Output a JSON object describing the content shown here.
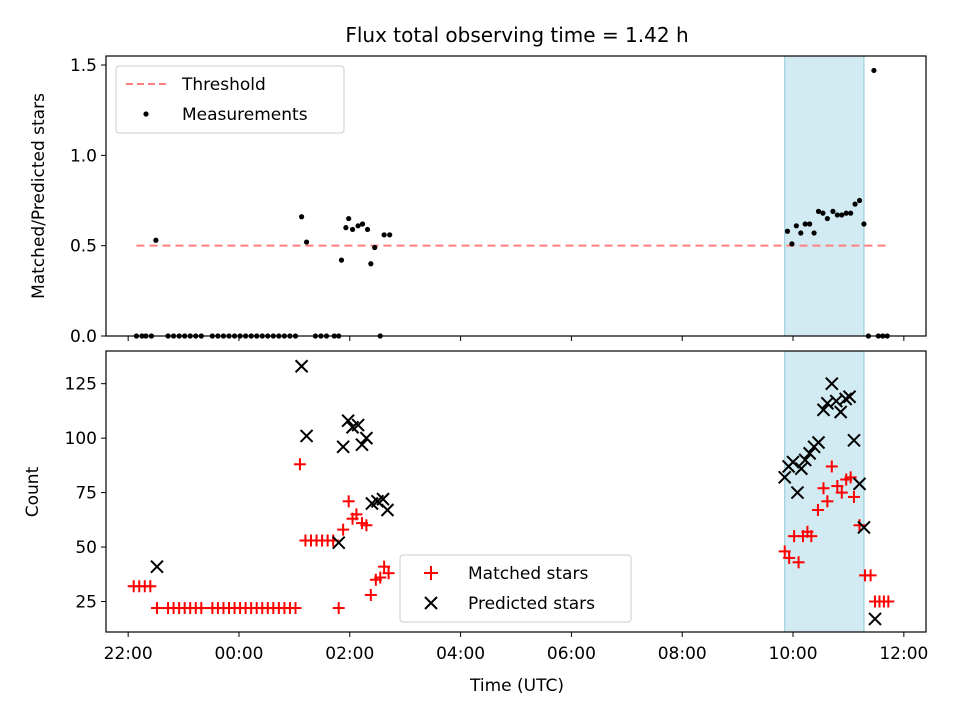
{
  "chart_data": {
    "title": "Flux total observing time = 1.42 h",
    "xlabel": "Time (UTC)",
    "x_unit": "hours UTC (24 = 00:00 next day)",
    "xlim": [
      21.6,
      36.4
    ],
    "xticks": [
      22,
      24,
      26,
      28,
      30,
      32,
      34,
      36
    ],
    "xtick_labels": [
      "22:00",
      "00:00",
      "02:00",
      "04:00",
      "06:00",
      "08:00",
      "10:00",
      "12:00"
    ],
    "highlight_span": [
      33.85,
      35.28
    ],
    "highlight_color": "#add8e6",
    "panels": [
      {
        "type": "scatter",
        "ylabel": "Matched/Predicted stars",
        "ylim": [
          0,
          1.55
        ],
        "yticks": [
          0.0,
          0.5,
          1.0,
          1.5
        ],
        "ytick_labels": [
          "0.0",
          "0.5",
          "1.0",
          "1.5"
        ],
        "legend_position": "top-left",
        "threshold": {
          "name": "Threshold",
          "value": 0.5,
          "x": [
            22.15,
            35.72
          ],
          "color": "#ff7f7f",
          "style": "dashed"
        },
        "series": [
          {
            "name": "Measurements",
            "marker": "dot",
            "color": "#000000",
            "points": [
              [
                22.15,
                0
              ],
              [
                22.25,
                0
              ],
              [
                22.32,
                0
              ],
              [
                22.42,
                0
              ],
              [
                22.5,
                0.53
              ],
              [
                22.72,
                0
              ],
              [
                22.82,
                0
              ],
              [
                22.92,
                0
              ],
              [
                23.02,
                0
              ],
              [
                23.12,
                0
              ],
              [
                23.22,
                0
              ],
              [
                23.32,
                0
              ],
              [
                23.52,
                0
              ],
              [
                23.62,
                0
              ],
              [
                23.72,
                0
              ],
              [
                23.82,
                0
              ],
              [
                23.92,
                0
              ],
              [
                24.02,
                0
              ],
              [
                24.12,
                0
              ],
              [
                24.22,
                0
              ],
              [
                24.32,
                0
              ],
              [
                24.42,
                0
              ],
              [
                24.52,
                0
              ],
              [
                24.62,
                0
              ],
              [
                24.72,
                0
              ],
              [
                24.82,
                0
              ],
              [
                24.92,
                0
              ],
              [
                25.02,
                0
              ],
              [
                25.13,
                0.66
              ],
              [
                25.22,
                0.52
              ],
              [
                25.38,
                0
              ],
              [
                25.48,
                0
              ],
              [
                25.58,
                0
              ],
              [
                25.72,
                0
              ],
              [
                25.8,
                0
              ],
              [
                25.85,
                0.42
              ],
              [
                25.93,
                0.6
              ],
              [
                25.98,
                0.65
              ],
              [
                26.05,
                0.59
              ],
              [
                26.15,
                0.61
              ],
              [
                26.23,
                0.62
              ],
              [
                26.32,
                0.59
              ],
              [
                26.38,
                0.4
              ],
              [
                26.45,
                0.49
              ],
              [
                26.55,
                0
              ],
              [
                26.62,
                0.56
              ],
              [
                26.72,
                0.56
              ],
              [
                33.9,
                0.58
              ],
              [
                33.98,
                0.51
              ],
              [
                34.06,
                0.61
              ],
              [
                34.14,
                0.57
              ],
              [
                34.22,
                0.62
              ],
              [
                34.3,
                0.62
              ],
              [
                34.38,
                0.57
              ],
              [
                34.46,
                0.69
              ],
              [
                34.54,
                0.68
              ],
              [
                34.62,
                0.65
              ],
              [
                34.72,
                0.69
              ],
              [
                34.8,
                0.67
              ],
              [
                34.88,
                0.67
              ],
              [
                34.96,
                0.68
              ],
              [
                35.04,
                0.68
              ],
              [
                35.12,
                0.73
              ],
              [
                35.2,
                0.75
              ],
              [
                35.28,
                0.62
              ],
              [
                35.36,
                0
              ],
              [
                35.46,
                1.47
              ],
              [
                35.54,
                0
              ],
              [
                35.62,
                0
              ],
              [
                35.7,
                0
              ]
            ]
          }
        ]
      },
      {
        "type": "scatter",
        "ylabel": "Count",
        "ylim": [
          11,
          140
        ],
        "yticks": [
          25,
          50,
          75,
          100,
          125
        ],
        "ytick_labels": [
          "25",
          "50",
          "75",
          "100",
          "125"
        ],
        "legend_position": "bottom-center",
        "series": [
          {
            "name": "Matched stars",
            "marker": "plus",
            "color": "#ff0000",
            "points": [
              [
                22.1,
                32
              ],
              [
                22.2,
                32
              ],
              [
                22.3,
                32
              ],
              [
                22.4,
                32
              ],
              [
                22.52,
                22
              ],
              [
                22.72,
                22
              ],
              [
                22.82,
                22
              ],
              [
                22.92,
                22
              ],
              [
                23.02,
                22
              ],
              [
                23.12,
                22
              ],
              [
                23.22,
                22
              ],
              [
                23.32,
                22
              ],
              [
                23.52,
                22
              ],
              [
                23.62,
                22
              ],
              [
                23.72,
                22
              ],
              [
                23.82,
                22
              ],
              [
                23.92,
                22
              ],
              [
                24.02,
                22
              ],
              [
                24.12,
                22
              ],
              [
                24.22,
                22
              ],
              [
                24.32,
                22
              ],
              [
                24.42,
                22
              ],
              [
                24.52,
                22
              ],
              [
                24.62,
                22
              ],
              [
                24.72,
                22
              ],
              [
                24.82,
                22
              ],
              [
                24.92,
                22
              ],
              [
                25.02,
                22
              ],
              [
                25.1,
                88
              ],
              [
                25.2,
                53
              ],
              [
                25.3,
                53
              ],
              [
                25.4,
                53
              ],
              [
                25.5,
                53
              ],
              [
                25.6,
                53
              ],
              [
                25.7,
                53
              ],
              [
                25.8,
                22
              ],
              [
                25.88,
                58
              ],
              [
                25.98,
                71
              ],
              [
                26.05,
                63
              ],
              [
                26.12,
                65
              ],
              [
                26.22,
                61
              ],
              [
                26.3,
                60
              ],
              [
                26.38,
                28
              ],
              [
                26.47,
                35
              ],
              [
                26.55,
                36
              ],
              [
                26.62,
                41
              ],
              [
                26.7,
                38
              ],
              [
                33.85,
                48
              ],
              [
                33.93,
                45
              ],
              [
                34.02,
                55
              ],
              [
                34.1,
                43
              ],
              [
                34.18,
                55
              ],
              [
                34.26,
                57
              ],
              [
                34.33,
                55
              ],
              [
                34.45,
                67
              ],
              [
                34.55,
                77
              ],
              [
                34.62,
                71
              ],
              [
                34.7,
                87
              ],
              [
                34.8,
                78
              ],
              [
                34.88,
                75
              ],
              [
                34.96,
                81
              ],
              [
                35.04,
                82
              ],
              [
                35.1,
                73
              ],
              [
                35.2,
                60
              ],
              [
                35.3,
                37
              ],
              [
                35.4,
                37
              ],
              [
                35.48,
                25
              ],
              [
                35.56,
                25
              ],
              [
                35.64,
                25
              ],
              [
                35.72,
                25
              ]
            ]
          },
          {
            "name": "Predicted stars",
            "marker": "x",
            "color": "#000000",
            "points": [
              [
                22.52,
                41
              ],
              [
                25.13,
                133
              ],
              [
                25.22,
                101
              ],
              [
                25.8,
                52
              ],
              [
                25.88,
                96
              ],
              [
                25.97,
                108
              ],
              [
                26.05,
                105
              ],
              [
                26.15,
                106
              ],
              [
                26.22,
                97
              ],
              [
                26.3,
                100
              ],
              [
                26.4,
                70
              ],
              [
                26.5,
                71
              ],
              [
                26.6,
                72
              ],
              [
                26.68,
                67
              ],
              [
                33.85,
                82
              ],
              [
                33.92,
                87
              ],
              [
                34.0,
                89
              ],
              [
                34.08,
                75
              ],
              [
                34.15,
                86
              ],
              [
                34.22,
                90
              ],
              [
                34.3,
                93
              ],
              [
                34.38,
                96
              ],
              [
                34.46,
                98
              ],
              [
                34.55,
                113
              ],
              [
                34.62,
                116
              ],
              [
                34.7,
                125
              ],
              [
                34.78,
                117
              ],
              [
                34.86,
                112
              ],
              [
                34.95,
                118
              ],
              [
                35.02,
                119
              ],
              [
                35.1,
                99
              ],
              [
                35.2,
                79
              ],
              [
                35.28,
                59
              ],
              [
                35.48,
                17
              ]
            ]
          }
        ]
      }
    ]
  }
}
